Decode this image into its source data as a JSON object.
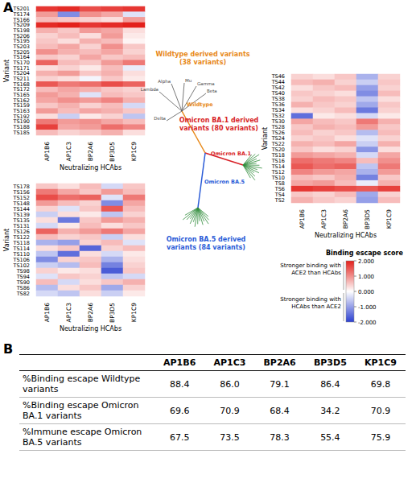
{
  "panel_labels": [
    "A",
    "B"
  ],
  "chart_data": [
    {
      "type": "heatmap",
      "x_label": "Neutralizing HCAbs",
      "y_label": "Variant",
      "x": [
        "AP1B6",
        "AP1C3",
        "BP2A6",
        "BP3D5",
        "KP1C9"
      ],
      "categories": [
        "TS201",
        "TS174",
        "TS166",
        "TS209",
        "TS198",
        "TS206",
        "TS195",
        "TS203",
        "TS205",
        "TS164",
        "TS170",
        "TS171",
        "TS204",
        "TS211",
        "TS168",
        "TS172",
        "TS165",
        "TS162",
        "TS159",
        "TS163",
        "TS192",
        "TS190",
        "TS188",
        "TS185"
      ],
      "cells": [
        [
          1.8,
          1.9,
          1.6,
          1.7,
          1.8
        ],
        [
          0.9,
          -1.2,
          1.0,
          0.8,
          -0.3
        ],
        [
          0.6,
          0.5,
          0.4,
          0.3,
          0.9
        ],
        [
          1.9,
          2.0,
          1.8,
          1.9,
          2.0
        ],
        [
          0.7,
          0.5,
          0.9,
          0.8,
          0.3
        ],
        [
          0.4,
          0.6,
          0.3,
          0.9,
          0.2
        ],
        [
          0.5,
          0.3,
          0.7,
          0.6,
          0.1
        ],
        [
          0.6,
          0.8,
          0.4,
          1.0,
          0.5
        ],
        [
          1.0,
          0.7,
          0.6,
          0.8,
          0.4
        ],
        [
          0.5,
          0.4,
          0.8,
          0.5,
          0.6
        ],
        [
          1.4,
          0.6,
          0.5,
          0.9,
          1.2
        ],
        [
          0.3,
          0.4,
          0.2,
          0.6,
          -0.2
        ],
        [
          0.7,
          0.9,
          0.5,
          0.7,
          0.3
        ],
        [
          0.4,
          0.3,
          -0.1,
          0.5,
          0.2
        ],
        [
          1.5,
          1.2,
          1.3,
          1.6,
          1.4
        ],
        [
          0.6,
          0.8,
          0.7,
          0.5,
          0.4
        ],
        [
          0.9,
          0.7,
          -0.3,
          0.6,
          0.5
        ],
        [
          0.8,
          1.0,
          0.9,
          1.1,
          0.7
        ],
        [
          0.5,
          0.7,
          0.4,
          0.6,
          -0.4
        ],
        [
          0.9,
          0.6,
          0.8,
          0.7,
          0.5
        ],
        [
          0.3,
          -0.5,
          0.2,
          0.4,
          -0.6
        ],
        [
          1.2,
          0.9,
          1.0,
          0.8,
          0.6
        ],
        [
          1.7,
          0.8,
          0.9,
          1.3,
          1.1
        ],
        [
          0.6,
          0.4,
          0.5,
          0.7,
          0.3
        ]
      ]
    },
    {
      "type": "heatmap",
      "x_label": "Neutralizing HCAbs",
      "y_label": "Variant",
      "x": [
        "AP1B6",
        "AP1C3",
        "BP2A6",
        "BP3D5",
        "KP1C9"
      ],
      "categories": [
        "TS46",
        "TS44",
        "TS42",
        "TS40",
        "TS38",
        "TS36",
        "TS34",
        "TS32",
        "TS30",
        "TS28",
        "TS26",
        "TS24",
        "TS22",
        "TS20",
        "TS18",
        "TS16",
        "TS14",
        "TS12",
        "TS10",
        "TS8",
        "TS6",
        "TS4",
        "TS2"
      ],
      "cells": [
        [
          0.4,
          0.3,
          0.5,
          -0.8,
          0.4
        ],
        [
          0.6,
          0.7,
          0.4,
          -0.5,
          0.5
        ],
        [
          0.3,
          0.5,
          0.6,
          -1.0,
          0.4
        ],
        [
          0.5,
          0.4,
          0.3,
          -1.2,
          0.6
        ],
        [
          0.4,
          0.6,
          0.5,
          -0.6,
          0.3
        ],
        [
          0.7,
          0.5,
          0.4,
          -0.9,
          0.5
        ],
        [
          0.3,
          0.4,
          0.6,
          -1.4,
          0.4
        ],
        [
          -1.5,
          0.2,
          0.3,
          -0.4,
          0.2
        ],
        [
          0.8,
          0.6,
          0.5,
          1.2,
          0.7
        ],
        [
          0.5,
          0.7,
          0.6,
          0.9,
          0.5
        ],
        [
          0.6,
          0.4,
          0.5,
          -0.7,
          0.6
        ],
        [
          0.4,
          0.5,
          0.3,
          -0.3,
          0.4
        ],
        [
          0.7,
          0.6,
          0.8,
          -0.5,
          0.7
        ],
        [
          0.5,
          0.3,
          0.4,
          -1.1,
          0.3
        ],
        [
          0.9,
          0.8,
          0.7,
          -0.4,
          0.8
        ],
        [
          1.3,
          1.2,
          1.1,
          0.6,
          1.0
        ],
        [
          1.5,
          1.3,
          1.4,
          -0.6,
          1.2
        ],
        [
          1.1,
          0.9,
          0.8,
          -0.8,
          0.9
        ],
        [
          0.6,
          0.5,
          0.7,
          -1.3,
          0.5
        ],
        [
          0.8,
          0.9,
          0.6,
          -0.2,
          0.7
        ],
        [
          1.8,
          1.7,
          1.6,
          1.5,
          1.7
        ],
        [
          0.5,
          0.4,
          0.6,
          -0.9,
          0.4
        ],
        [
          0.7,
          0.5,
          0.4,
          -1.0,
          0.6
        ]
      ]
    },
    {
      "type": "heatmap",
      "x_label": "Neutralizing HCAbs",
      "y_label": "Variant",
      "x": [
        "AP1B6",
        "AP1C3",
        "BP2A6",
        "BP3D5",
        "KP1C9"
      ],
      "categories": [
        "TS178",
        "TS156",
        "TS152",
        "TS148",
        "TS144",
        "TS139",
        "TS135",
        "TS131",
        "TS126",
        "TS122",
        "TS118",
        "TS114",
        "TS110",
        "TS106",
        "TS102",
        "TS98",
        "TS94",
        "TS90",
        "TS86",
        "TS82"
      ],
      "cells": [
        [
          0.5,
          0.3,
          0.6,
          -0.4,
          0.5
        ],
        [
          1.2,
          0.8,
          0.5,
          0.9,
          0.6
        ],
        [
          1.6,
          1.3,
          1.4,
          -0.3,
          1.2
        ],
        [
          0.9,
          0.6,
          0.4,
          -1.2,
          0.8
        ],
        [
          0.4,
          -0.3,
          0.5,
          1.5,
          0.6
        ],
        [
          -0.5,
          0.3,
          0.2,
          -0.6,
          0.4
        ],
        [
          0.3,
          -1.4,
          0.5,
          0.9,
          0.7
        ],
        [
          -0.4,
          0.2,
          0.6,
          0.3,
          0.5
        ],
        [
          1.4,
          0.7,
          0.9,
          1.2,
          0.8
        ],
        [
          0.6,
          0.4,
          0.5,
          -0.5,
          0.3
        ],
        [
          -0.8,
          -1.0,
          0.4,
          0.6,
          -0.3
        ],
        [
          0.3,
          0.5,
          -1.6,
          0.4,
          0.6
        ],
        [
          -0.6,
          -1.5,
          0.3,
          -0.4,
          0.2
        ],
        [
          -1.2,
          0.4,
          0.5,
          -0.8,
          0.3
        ],
        [
          -0.5,
          -0.7,
          0.6,
          -1.3,
          0.4
        ],
        [
          0.4,
          0.2,
          0.3,
          -1.7,
          0.5
        ],
        [
          -0.3,
          0.5,
          0.4,
          -0.6,
          -0.4
        ],
        [
          0.6,
          -0.4,
          0.3,
          0.5,
          0.7
        ],
        [
          -0.7,
          0.3,
          0.5,
          -0.9,
          0.4
        ],
        [
          -0.4,
          -0.6,
          0.3,
          -0.5,
          0.2
        ]
      ]
    }
  ],
  "color_bar": {
    "title": "Binding escape score",
    "range": [
      -2,
      2
    ],
    "ticks": [
      {
        "value": 2,
        "label": "2.000"
      },
      {
        "value": 1,
        "label": "1.000"
      },
      {
        "value": 0,
        "label": "0.000"
      },
      {
        "value": -1,
        "label": "-1.000"
      },
      {
        "value": -2,
        "label": "-2.000"
      }
    ],
    "colors": [
      "#2b3fd0",
      "#ffffff",
      "#e3201b"
    ],
    "high_label": "Stronger binding with ACE2 than HCAbs",
    "low_label": "Stronger binding with HCAbs than ACE2"
  },
  "tree": {
    "branches": [
      {
        "name": "Wildtype",
        "label": "Wildtype derived variants (38 variants)",
        "color": "#e8891a",
        "lineages": [
          "Lambda",
          "Alpha",
          "Mu",
          "Gamma",
          "Beta",
          "Delta"
        ]
      },
      {
        "name": "Omicron BA.1",
        "label": "Omicron BA.1 derived variants (80 variants)",
        "color": "#d81f26"
      },
      {
        "name": "Omicron BA.5",
        "label": "Omicron BA.5 derived variants (84 variants)",
        "color": "#2a5bd7"
      }
    ]
  },
  "table": {
    "columns": [
      "AP1B6",
      "AP1C3",
      "BP2A6",
      "BP3D5",
      "KP1C9"
    ],
    "rows": [
      {
        "label": "%Binding escape Wildtype variants",
        "values": [
          "88.4",
          "86.0",
          "79.1",
          "86.4",
          "69.8"
        ]
      },
      {
        "label": "%Binding escape Omicron BA.1 variants",
        "values": [
          "69.6",
          "70.9",
          "68.4",
          "34.2",
          "70.9"
        ]
      },
      {
        "label": "%Immune escape Omicron BA.5 variants",
        "values": [
          "67.5",
          "73.5",
          "78.3",
          "55.4",
          "75.9"
        ]
      }
    ]
  }
}
